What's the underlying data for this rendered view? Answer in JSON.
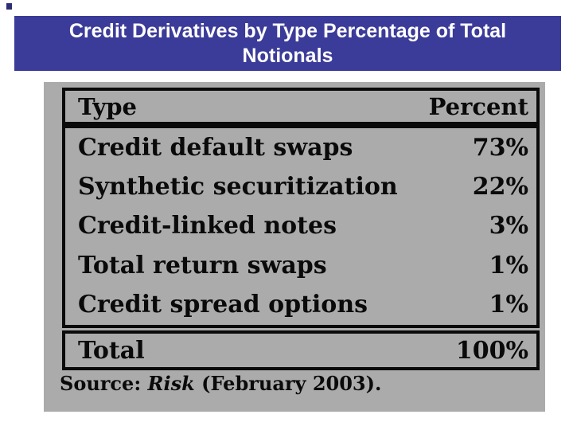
{
  "slide": {
    "title": "Credit Derivatives by Type Percentage of Total Notionals",
    "title_lines": [
      "Credit Derivatives by Type Percentage of Total",
      "Notionals"
    ]
  },
  "colors": {
    "title_bg": "#3B3B99",
    "title_text": "#FFFFFF",
    "panel_bg": "#ABABAB",
    "table_border": "#0A0A0A",
    "text": "#0A0A0A",
    "corner_artifact": "#2E2E75",
    "page_bg": "#FFFFFF"
  },
  "chart_data": {
    "type": "table",
    "title": "Credit Derivatives by Type Percentage of Total Notionals",
    "columns": [
      "Type",
      "Percent"
    ],
    "rows": [
      [
        "Credit default swaps",
        "73%"
      ],
      [
        "Synthetic securitization",
        "22%"
      ],
      [
        "Credit-linked notes",
        "3%"
      ],
      [
        "Total return swaps",
        "1%"
      ],
      [
        "Credit spread options",
        "1%"
      ]
    ],
    "total_row": [
      "Total",
      "100%"
    ],
    "source": {
      "prefix": "Source: ",
      "publication": "Risk",
      "suffix": " (February 2003)."
    }
  }
}
